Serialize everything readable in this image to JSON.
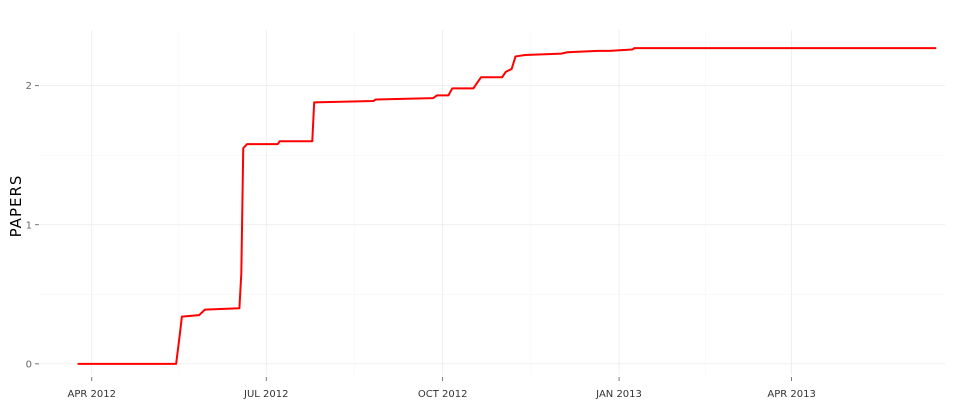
{
  "chart_data": {
    "type": "line",
    "title": "",
    "xlabel": "",
    "ylabel": "PAPERS",
    "x_axis": {
      "type": "date",
      "range": [
        "2012-03-05",
        "2013-06-20"
      ],
      "ticks": [
        {
          "date": "2012-04-01",
          "label": "APR 2012"
        },
        {
          "date": "2012-07-01",
          "label": "JUL 2012"
        },
        {
          "date": "2012-10-01",
          "label": "OCT 2012"
        },
        {
          "date": "2013-01-01",
          "label": "JAN 2013"
        },
        {
          "date": "2013-04-01",
          "label": "APR 2013"
        }
      ]
    },
    "y_axis": {
      "range": [
        -0.08,
        2.4
      ],
      "ticks": [
        {
          "value": 0,
          "label": "0"
        },
        {
          "value": 1,
          "label": "1"
        },
        {
          "value": 2,
          "label": "2"
        }
      ]
    },
    "grid": true,
    "legend": "none",
    "series": [
      {
        "color": "#ff0000",
        "points": [
          {
            "x": "2012-03-25",
            "y": 0.0
          },
          {
            "x": "2012-05-15",
            "y": 0.0
          },
          {
            "x": "2012-05-17",
            "y": 0.22
          },
          {
            "x": "2012-05-18",
            "y": 0.34
          },
          {
            "x": "2012-05-27",
            "y": 0.35
          },
          {
            "x": "2012-05-30",
            "y": 0.39
          },
          {
            "x": "2012-06-17",
            "y": 0.4
          },
          {
            "x": "2012-06-18",
            "y": 0.65
          },
          {
            "x": "2012-06-19",
            "y": 1.55
          },
          {
            "x": "2012-06-21",
            "y": 1.58
          },
          {
            "x": "2012-07-07",
            "y": 1.58
          },
          {
            "x": "2012-07-08",
            "y": 1.6
          },
          {
            "x": "2012-07-25",
            "y": 1.6
          },
          {
            "x": "2012-07-26",
            "y": 1.88
          },
          {
            "x": "2012-08-26",
            "y": 1.89
          },
          {
            "x": "2012-08-27",
            "y": 1.9
          },
          {
            "x": "2012-09-26",
            "y": 1.91
          },
          {
            "x": "2012-09-28",
            "y": 1.93
          },
          {
            "x": "2012-10-04",
            "y": 1.93
          },
          {
            "x": "2012-10-06",
            "y": 1.98
          },
          {
            "x": "2012-10-17",
            "y": 1.98
          },
          {
            "x": "2012-10-19",
            "y": 2.02
          },
          {
            "x": "2012-10-21",
            "y": 2.06
          },
          {
            "x": "2012-11-01",
            "y": 2.06
          },
          {
            "x": "2012-11-03",
            "y": 2.1
          },
          {
            "x": "2012-11-06",
            "y": 2.12
          },
          {
            "x": "2012-11-08",
            "y": 2.21
          },
          {
            "x": "2012-11-13",
            "y": 2.22
          },
          {
            "x": "2012-12-02",
            "y": 2.23
          },
          {
            "x": "2012-12-05",
            "y": 2.24
          },
          {
            "x": "2012-12-21",
            "y": 2.25
          },
          {
            "x": "2012-12-27",
            "y": 2.25
          },
          {
            "x": "2013-01-08",
            "y": 2.26
          },
          {
            "x": "2013-01-09",
            "y": 2.27
          },
          {
            "x": "2013-06-15",
            "y": 2.27
          }
        ]
      }
    ]
  }
}
